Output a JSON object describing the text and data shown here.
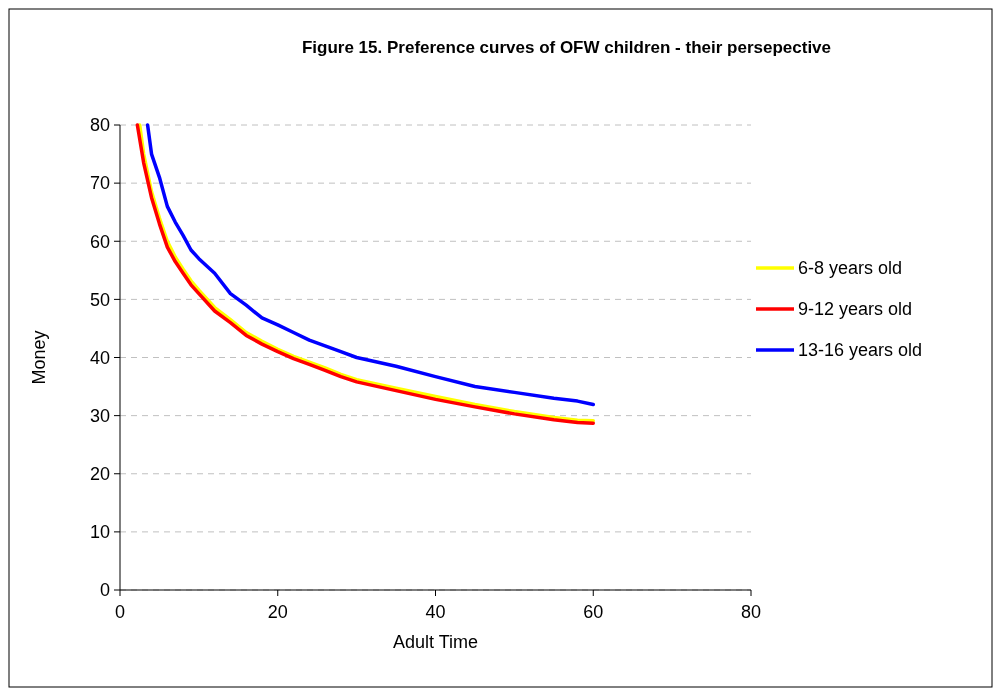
{
  "chart_data": {
    "type": "line",
    "title": "Figure 15. Preference curves of OFW children - their persepective",
    "xlabel": "Adult Time",
    "ylabel": "Money",
    "xlim": [
      0,
      80
    ],
    "xticks": [
      0,
      20,
      40,
      60,
      80
    ],
    "ylim": [
      0,
      80
    ],
    "yticks": [
      0,
      10,
      20,
      30,
      40,
      50,
      60,
      70,
      80
    ],
    "grid": "y",
    "legend": "right",
    "marker": "none",
    "line_style": "solid",
    "series": [
      {
        "name": "6-8 years old",
        "color": "#ffff00",
        "x": [
          2.5,
          3,
          4,
          5,
          6,
          7,
          8,
          9,
          10,
          12,
          14,
          16,
          18,
          20,
          22,
          24,
          26,
          28,
          30,
          35,
          40,
          45,
          50,
          55,
          58,
          60
        ],
        "values": [
          80,
          75,
          68.5,
          64,
          60,
          57.3,
          55.2,
          53.2,
          51.6,
          48.6,
          46.5,
          44.3,
          42.8,
          41.4,
          40.2,
          39.2,
          38.2,
          37.1,
          36.2,
          34.7,
          33.3,
          31.9,
          30.7,
          29.7,
          29.2,
          29.1
        ]
      },
      {
        "name": "9-12 years old",
        "color": "#ff0000",
        "x": [
          2.2,
          3,
          4,
          5,
          6,
          7,
          8,
          9,
          10,
          12,
          14,
          16,
          18,
          20,
          22,
          24,
          26,
          28,
          30,
          35,
          40,
          45,
          50,
          55,
          58,
          60
        ],
        "values": [
          80,
          73.5,
          67.5,
          63,
          59,
          56.5,
          54.5,
          52.5,
          51,
          48,
          46,
          43.8,
          42.3,
          41,
          39.8,
          38.8,
          37.8,
          36.7,
          35.8,
          34.3,
          32.8,
          31.5,
          30.3,
          29.3,
          28.8,
          28.7
        ]
      },
      {
        "name": "13-16 years old",
        "color": "#0000ff",
        "x": [
          3.5,
          4,
          5,
          6,
          7,
          8,
          9,
          10,
          12,
          14,
          16,
          18,
          20,
          22,
          24,
          26,
          28,
          30,
          35,
          40,
          45,
          50,
          55,
          58,
          60
        ],
        "values": [
          80,
          75,
          71,
          66,
          63.3,
          61,
          58.5,
          57,
          54.5,
          51,
          49,
          46.8,
          45.6,
          44.3,
          43,
          42,
          41,
          40,
          38.5,
          36.7,
          35,
          34,
          33,
          32.5,
          31.9
        ]
      }
    ]
  }
}
